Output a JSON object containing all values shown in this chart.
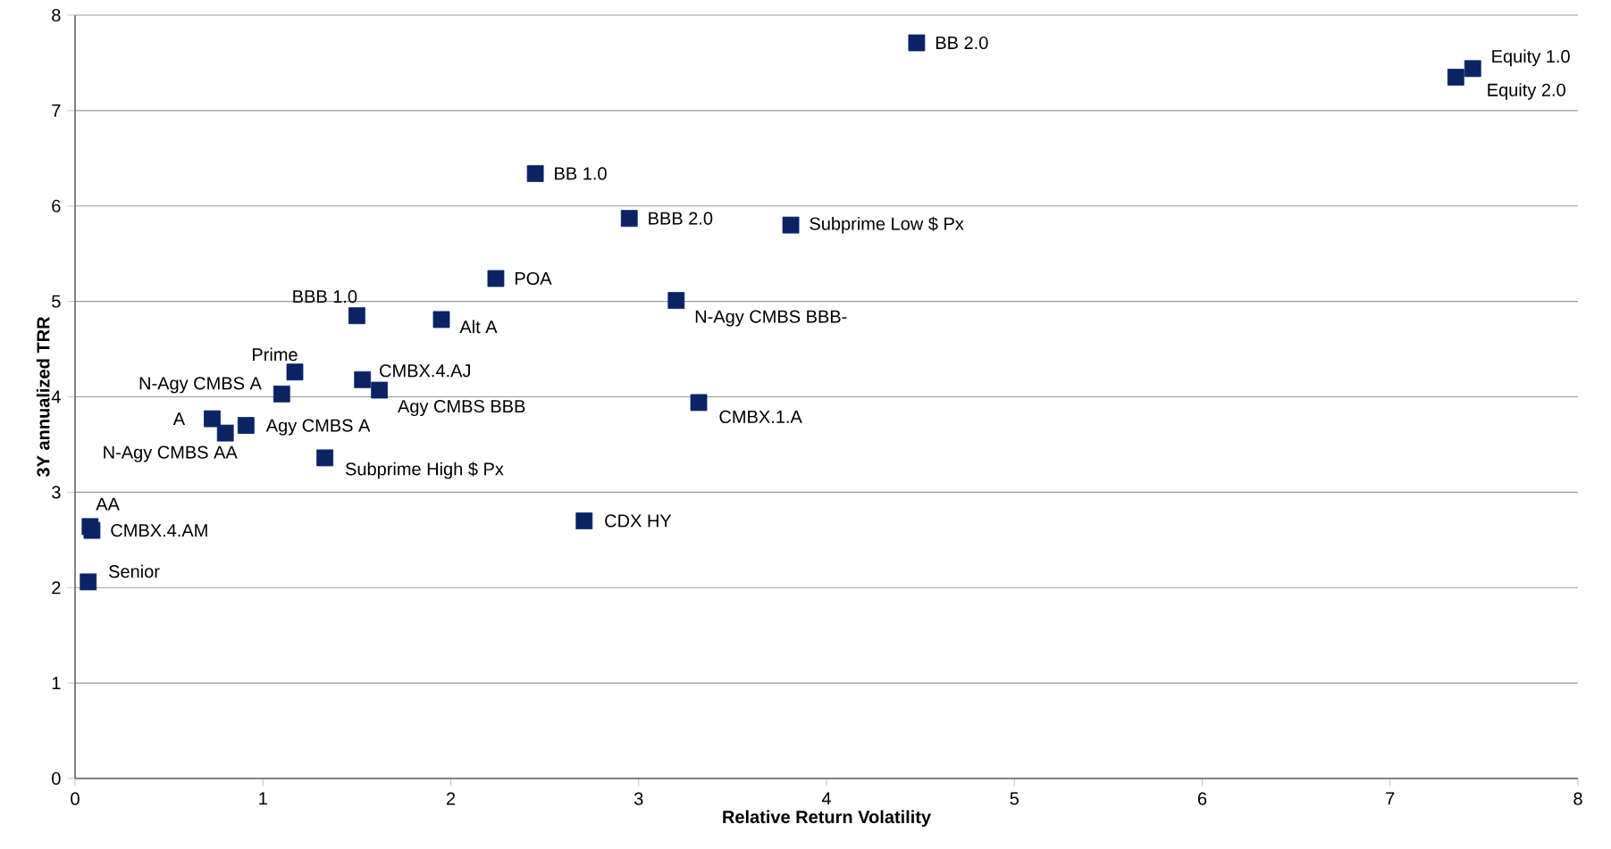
{
  "chart_data": {
    "type": "scatter",
    "xlabel": "Relative Return Volatility",
    "ylabel": "3Y annualized TRR",
    "x": [
      4.48,
      7.44,
      7.35,
      2.45,
      2.95,
      3.81,
      2.24,
      3.2,
      1.5,
      1.95,
      1.17,
      1.53,
      1.62,
      1.1,
      3.32,
      0.73,
      0.91,
      0.8,
      1.33,
      2.71,
      0.08,
      0.09,
      0.07
    ],
    "values": [
      7.71,
      7.44,
      7.35,
      6.34,
      5.87,
      5.8,
      5.24,
      5.01,
      4.85,
      4.81,
      4.26,
      4.18,
      4.07,
      4.03,
      3.94,
      3.77,
      3.7,
      3.62,
      3.36,
      2.7,
      2.64,
      2.6,
      2.06
    ],
    "color": "#0b2265",
    "marker": "square",
    "xlim": [
      0,
      8
    ],
    "ylim": [
      0,
      8
    ],
    "xticks": [
      0,
      1,
      2,
      3,
      4,
      5,
      6,
      7,
      8
    ],
    "yticks": [
      0,
      1,
      2,
      3,
      4,
      5,
      6,
      7,
      8
    ],
    "grid": "y",
    "annotations": [
      {
        "text": "BB 2.0",
        "x": 4.48,
        "y": 7.71
      },
      {
        "text": "Equity 1.0",
        "x": 7.44,
        "y": 7.44
      },
      {
        "text": "Equity 2.0",
        "x": 7.35,
        "y": 7.35
      },
      {
        "text": "BB 1.0",
        "x": 2.45,
        "y": 6.34
      },
      {
        "text": "BBB 2.0",
        "x": 2.95,
        "y": 5.87
      },
      {
        "text": "Subprime Low $ Px",
        "x": 3.81,
        "y": 5.8
      },
      {
        "text": "POA",
        "x": 2.24,
        "y": 5.24
      },
      {
        "text": "N-Agy CMBS BBB-",
        "x": 3.2,
        "y": 5.01
      },
      {
        "text": "BBB 1.0",
        "x": 1.5,
        "y": 4.85
      },
      {
        "text": "Alt A",
        "x": 1.95,
        "y": 4.81
      },
      {
        "text": "Prime",
        "x": 1.17,
        "y": 4.26
      },
      {
        "text": "CMBX.4.AJ",
        "x": 1.53,
        "y": 4.18
      },
      {
        "text": "Agy CMBS BBB",
        "x": 1.62,
        "y": 4.07
      },
      {
        "text": "N-Agy CMBS A",
        "x": 1.1,
        "y": 4.03
      },
      {
        "text": "CMBX.1.A",
        "x": 3.32,
        "y": 3.94
      },
      {
        "text": "A",
        "x": 0.73,
        "y": 3.77
      },
      {
        "text": "Agy CMBS A",
        "x": 0.91,
        "y": 3.7
      },
      {
        "text": "N-Agy CMBS AA",
        "x": 0.8,
        "y": 3.62
      },
      {
        "text": "Subprime High $ Px",
        "x": 1.33,
        "y": 3.36
      },
      {
        "text": "CDX HY",
        "x": 2.71,
        "y": 2.7
      },
      {
        "text": "AA",
        "x": 0.08,
        "y": 2.64
      },
      {
        "text": "CMBX.4.AM",
        "x": 0.09,
        "y": 2.6
      },
      {
        "text": "Senior",
        "x": 0.07,
        "y": 2.06
      }
    ]
  }
}
